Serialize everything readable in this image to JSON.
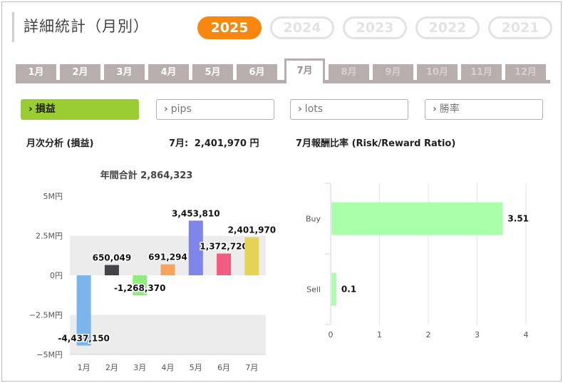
{
  "page_title": "詳細統計（月別）",
  "years": [
    {
      "label": "2025",
      "active": true
    },
    {
      "label": "2024",
      "active": false
    },
    {
      "label": "2023",
      "active": false
    },
    {
      "label": "2022",
      "active": false
    },
    {
      "label": "2021",
      "active": false
    }
  ],
  "months": [
    {
      "label": "1月",
      "state": "normal"
    },
    {
      "label": "2月",
      "state": "normal"
    },
    {
      "label": "3月",
      "state": "normal"
    },
    {
      "label": "4月",
      "state": "normal"
    },
    {
      "label": "5月",
      "state": "normal"
    },
    {
      "label": "6月",
      "state": "normal"
    },
    {
      "label": "7月",
      "state": "active"
    },
    {
      "label": "8月",
      "state": "disabled"
    },
    {
      "label": "9月",
      "state": "disabled"
    },
    {
      "label": "10月",
      "state": "disabled"
    },
    {
      "label": "11月",
      "state": "disabled"
    },
    {
      "label": "12月",
      "state": "disabled"
    }
  ],
  "filters": [
    {
      "label": "損益",
      "active": true
    },
    {
      "label": "pips",
      "active": false
    },
    {
      "label": "lots",
      "active": false
    },
    {
      "label": "勝率",
      "active": false
    }
  ],
  "left_section": {
    "title": "月次分析 (損益)",
    "month_label": "7月:",
    "month_value": "2,401,970 円"
  },
  "right_section": {
    "title": "7月報酬比率 (Risk/Reward Ratio)"
  },
  "colors": {
    "accent_orange": "#f7870f",
    "filter_active": "#9acd32",
    "tab_gray": "#b8aeae",
    "rr_bar": "#aaffaa"
  },
  "chart_data": [
    {
      "type": "bar",
      "title": "年間合計 2,864,323",
      "categories": [
        "1月",
        "2月",
        "3月",
        "4月",
        "5月",
        "6月",
        "7月"
      ],
      "values": [
        -4437150,
        650049,
        -1268370,
        691294,
        3453810,
        1372720,
        2401970
      ],
      "value_labels": [
        "-4,437,150",
        "650,049",
        "-1,268,370",
        "691,294",
        "3,453,810",
        "1,372,720",
        "2,401,970"
      ],
      "bar_colors": [
        "#7cb5ec",
        "#434348",
        "#90ed7d",
        "#f7a35c",
        "#8085e9",
        "#f15c80",
        "#e4d354"
      ],
      "ylim": [
        -5000000,
        5000000
      ],
      "yticks": [
        {
          "value": 5000000,
          "label": "5M円"
        },
        {
          "value": 2500000,
          "label": "2.5M円"
        },
        {
          "value": 0,
          "label": "0円"
        },
        {
          "value": -2500000,
          "label": "−2.5M円"
        },
        {
          "value": -5000000,
          "label": "−5M円"
        }
      ],
      "grid": true,
      "legend": "none"
    },
    {
      "type": "bar",
      "orientation": "horizontal",
      "title": "",
      "categories": [
        "Buy",
        "Sell"
      ],
      "values": [
        3.51,
        0.1
      ],
      "value_labels": [
        "3.51",
        "0.1"
      ],
      "xlim": [
        0,
        4
      ],
      "xticks": [
        {
          "value": 0,
          "label": "0"
        },
        {
          "value": 1,
          "label": "1"
        },
        {
          "value": 2,
          "label": "2"
        },
        {
          "value": 3,
          "label": "3"
        },
        {
          "value": 4,
          "label": "4"
        }
      ],
      "grid": true,
      "legend": "none"
    }
  ]
}
